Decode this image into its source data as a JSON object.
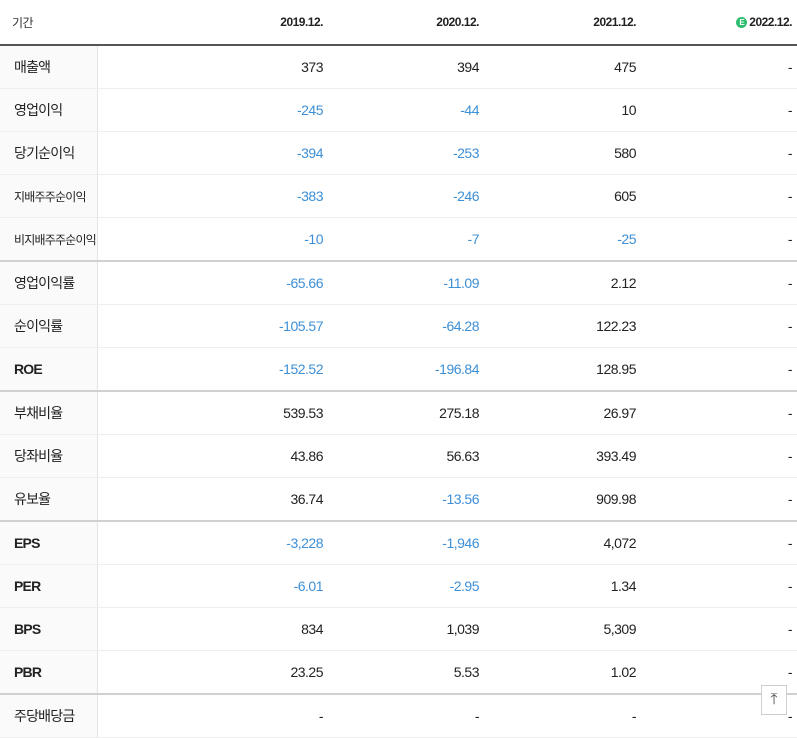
{
  "header": {
    "period_label": "기간",
    "col1": "2019.12.",
    "col2": "2020.12.",
    "col3": "2021.12.",
    "col4_icon": "E",
    "col4": "2022.12."
  },
  "rows": [
    {
      "label": "매출액",
      "values": [
        "373",
        "394",
        "475",
        "-"
      ]
    },
    {
      "label": "영업이익",
      "values": [
        "-245",
        "-44",
        "10",
        "-"
      ]
    },
    {
      "label": "당기순이익",
      "values": [
        "-394",
        "-253",
        "580",
        "-"
      ]
    },
    {
      "label": "지배주주순이익",
      "values": [
        "-383",
        "-246",
        "605",
        "-"
      ]
    },
    {
      "label": "비지배주주순이익",
      "values": [
        "-10",
        "-7",
        "-25",
        "-"
      ]
    },
    {
      "label": "영업이익률",
      "values": [
        "-65.66",
        "-11.09",
        "2.12",
        "-"
      ]
    },
    {
      "label": "순이익률",
      "values": [
        "-105.57",
        "-64.28",
        "122.23",
        "-"
      ]
    },
    {
      "label": "ROE",
      "values": [
        "-152.52",
        "-196.84",
        "128.95",
        "-"
      ]
    },
    {
      "label": "부채비율",
      "values": [
        "539.53",
        "275.18",
        "26.97",
        "-"
      ]
    },
    {
      "label": "당좌비율",
      "values": [
        "43.86",
        "56.63",
        "393.49",
        "-"
      ]
    },
    {
      "label": "유보율",
      "values": [
        "36.74",
        "-13.56",
        "909.98",
        "-"
      ]
    },
    {
      "label": "EPS",
      "values": [
        "-3,228",
        "-1,946",
        "4,072",
        "-"
      ]
    },
    {
      "label": "PER",
      "values": [
        "-6.01",
        "-2.95",
        "1.34",
        "-"
      ]
    },
    {
      "label": "BPS",
      "values": [
        "834",
        "1,039",
        "5,309",
        "-"
      ]
    },
    {
      "label": "PBR",
      "values": [
        "23.25",
        "5.53",
        "1.02",
        "-"
      ]
    },
    {
      "label": "주당배당금",
      "values": [
        "-",
        "-",
        "-",
        "-"
      ]
    }
  ],
  "colors": {
    "negative": "#3d8fd6",
    "estimate_icon": "#2dbd6e"
  },
  "scroll_top_icon": "arrow-up-icon",
  "scroll_top_glyph": "⤒"
}
